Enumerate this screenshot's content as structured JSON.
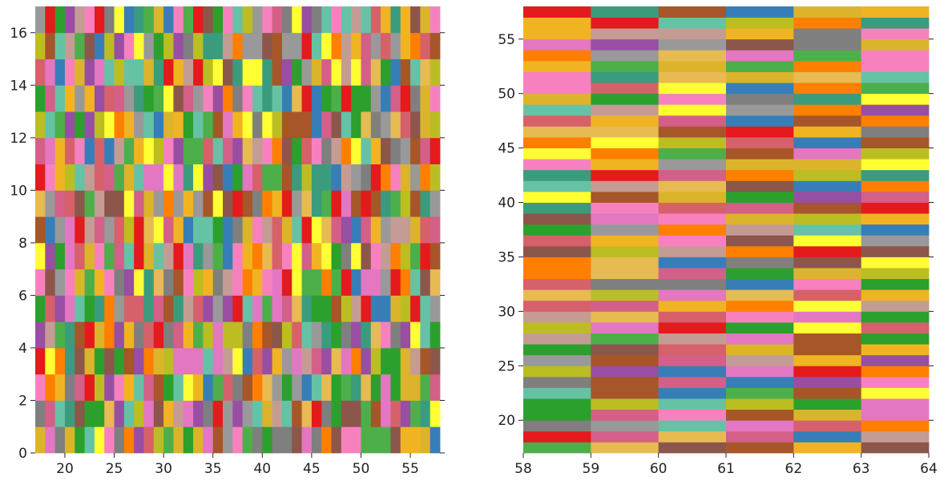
{
  "palette": [
    "#e41a1c",
    "#377eb8",
    "#4daf4a",
    "#984ea3",
    "#ff7f00",
    "#ffff33",
    "#a65628",
    "#f781bf",
    "#999999",
    "#66c2a5",
    "#d6616b",
    "#dbb42c",
    "#8c564b",
    "#7f7f7f",
    "#2ca02c",
    "#e7ba52",
    "#c49c94",
    "#d45f88",
    "#3a9c7c",
    "#e377c2",
    "#bcbd22",
    "#f0b422"
  ],
  "chart_data": [
    {
      "type": "heatmap",
      "title": "",
      "xlabel": "",
      "ylabel": "",
      "xlim": [
        17,
        58
      ],
      "ylim": [
        0,
        17
      ],
      "x_ticks": [
        20,
        25,
        30,
        35,
        40,
        45,
        50,
        55
      ],
      "y_ticks": [
        0,
        2,
        4,
        6,
        8,
        10,
        12,
        14,
        16
      ],
      "x_tick_labels": [
        "20",
        "25",
        "30",
        "35",
        "40",
        "45",
        "50",
        "55"
      ],
      "y_tick_labels": [
        "0",
        "2",
        "4",
        "6",
        "8",
        "10",
        "12",
        "14",
        "16"
      ],
      "cells": {
        "x_start": 17,
        "x_step": 1,
        "columns": 41,
        "y_start": 0,
        "y_step": 1,
        "rows": 17
      },
      "grid": false,
      "note_values": "categorical color per cell (random assignment)"
    },
    {
      "type": "heatmap",
      "title": "",
      "xlabel": "",
      "ylabel": "",
      "xlim": [
        58,
        64
      ],
      "ylim": [
        17,
        58
      ],
      "x_ticks": [
        58,
        59,
        60,
        61,
        62,
        63,
        64
      ],
      "y_ticks": [
        20,
        25,
        30,
        35,
        40,
        45,
        50,
        55
      ],
      "x_tick_labels": [
        "58",
        "59",
        "60",
        "61",
        "62",
        "63",
        "64"
      ],
      "y_tick_labels": [
        "20",
        "25",
        "30",
        "35",
        "40",
        "45",
        "50",
        "55"
      ],
      "cells": {
        "x_start": 58,
        "x_step": 1,
        "columns": 6,
        "y_start": 17,
        "y_step": 1,
        "rows": 41
      },
      "grid": false
    }
  ]
}
